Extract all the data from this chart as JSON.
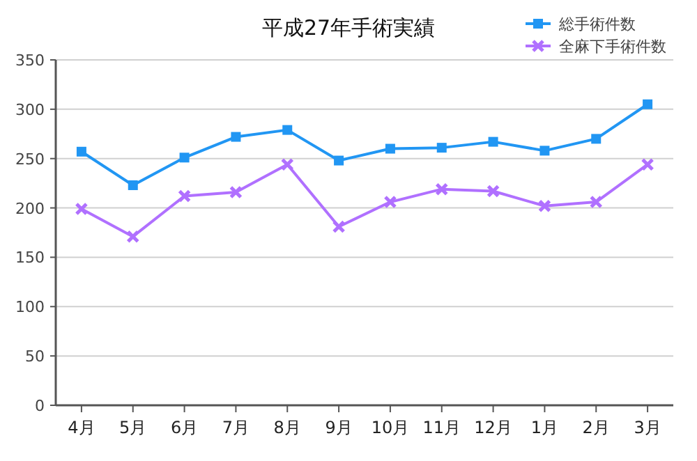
{
  "chart_data": {
    "type": "line",
    "title": "平成27年手術実績",
    "categories": [
      "4月",
      "5月",
      "6月",
      "7月",
      "8月",
      "9月",
      "10月",
      "11月",
      "12月",
      "1月",
      "2月",
      "3月"
    ],
    "series": [
      {
        "name": "総手術件数",
        "color": "#2196f3",
        "marker": "square",
        "values": [
          257,
          223,
          251,
          272,
          279,
          248,
          260,
          261,
          267,
          258,
          270,
          305
        ]
      },
      {
        "name": "全麻下手術件数",
        "color": "#b070ff",
        "marker": "cross",
        "values": [
          199,
          171,
          212,
          216,
          244,
          181,
          206,
          219,
          217,
          202,
          206,
          244
        ]
      }
    ],
    "ylim": [
      0,
      350
    ],
    "yticks": [
      0,
      50,
      100,
      150,
      200,
      250,
      300,
      350
    ],
    "grid": "y",
    "legend": "top right"
  }
}
